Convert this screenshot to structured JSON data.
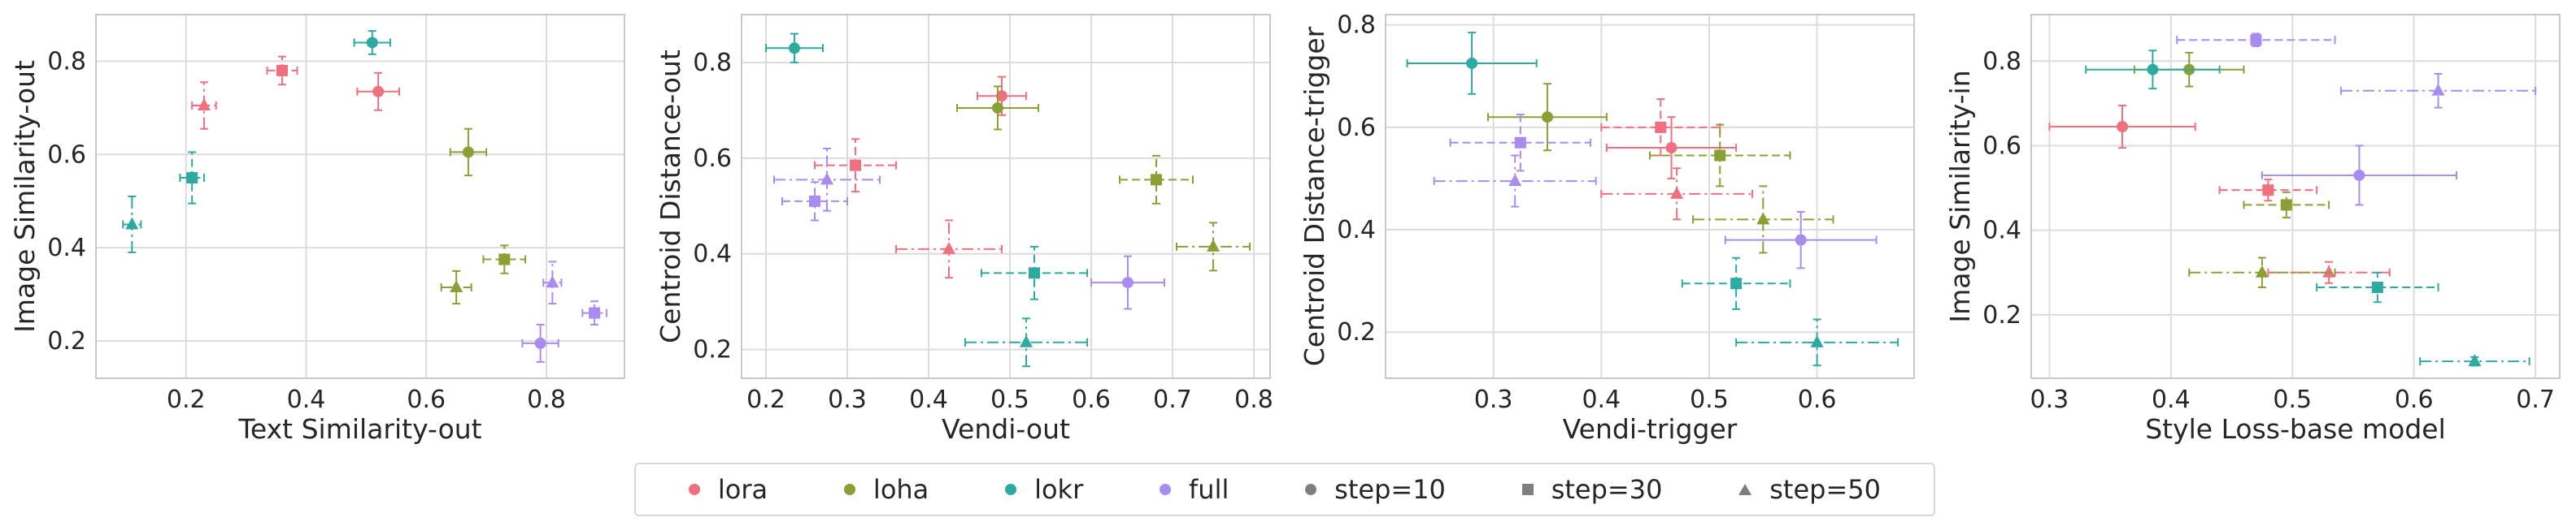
{
  "colors": {
    "lora": "#f07080",
    "loha": "#8aa034",
    "lokr": "#2faaa0",
    "full": "#a88cf0",
    "marker": "#7f7f7f",
    "grid": "#dcdcdc",
    "frame": "#c8c8c8",
    "text": "#262626"
  },
  "legend": [
    {
      "label": "lora",
      "shape": "circle",
      "color": "#f07080"
    },
    {
      "label": "loha",
      "shape": "circle",
      "color": "#8aa034"
    },
    {
      "label": "lokr",
      "shape": "circle",
      "color": "#2faaa0"
    },
    {
      "label": "full",
      "shape": "circle",
      "color": "#a88cf0"
    },
    {
      "label": "step=10",
      "shape": "circle",
      "color": "#7f7f7f"
    },
    {
      "label": "step=30",
      "shape": "square",
      "color": "#7f7f7f"
    },
    {
      "label": "step=50",
      "shape": "triangle",
      "color": "#7f7f7f"
    }
  ],
  "chart_data": [
    {
      "type": "scatter",
      "xlabel": "Text Similarity-out",
      "ylabel": "Image Similarity-out",
      "xlim": [
        0.05,
        0.93
      ],
      "ylim": [
        0.12,
        0.9
      ],
      "xticks": [
        "0.2",
        "0.4",
        "0.6",
        "0.8"
      ],
      "xtick_values": [
        0.2,
        0.4,
        0.6,
        0.8
      ],
      "yticks": [
        "0.2",
        "0.4",
        "0.6",
        "0.8"
      ],
      "ytick_values": [
        0.2,
        0.4,
        0.6,
        0.8
      ],
      "grid": true,
      "points": [
        {
          "method": "lora",
          "step": 10,
          "x": 0.52,
          "y": 0.735,
          "xerr": 0.035,
          "yerr": 0.04
        },
        {
          "method": "lora",
          "step": 30,
          "x": 0.36,
          "y": 0.78,
          "xerr": 0.025,
          "yerr": 0.03
        },
        {
          "method": "lora",
          "step": 50,
          "x": 0.23,
          "y": 0.705,
          "xerr": 0.02,
          "yerr": 0.05
        },
        {
          "method": "loha",
          "step": 10,
          "x": 0.67,
          "y": 0.605,
          "xerr": 0.03,
          "yerr": 0.05
        },
        {
          "method": "loha",
          "step": 30,
          "x": 0.73,
          "y": 0.375,
          "xerr": 0.035,
          "yerr": 0.03
        },
        {
          "method": "loha",
          "step": 50,
          "x": 0.65,
          "y": 0.315,
          "xerr": 0.025,
          "yerr": 0.035
        },
        {
          "method": "lokr",
          "step": 10,
          "x": 0.51,
          "y": 0.84,
          "xerr": 0.03,
          "yerr": 0.025
        },
        {
          "method": "lokr",
          "step": 30,
          "x": 0.21,
          "y": 0.55,
          "xerr": 0.02,
          "yerr": 0.055
        },
        {
          "method": "lokr",
          "step": 50,
          "x": 0.11,
          "y": 0.45,
          "xerr": 0.015,
          "yerr": 0.06
        },
        {
          "method": "full",
          "step": 10,
          "x": 0.79,
          "y": 0.195,
          "xerr": 0.03,
          "yerr": 0.04
        },
        {
          "method": "full",
          "step": 30,
          "x": 0.88,
          "y": 0.26,
          "xerr": 0.02,
          "yerr": 0.025
        },
        {
          "method": "full",
          "step": 50,
          "x": 0.81,
          "y": 0.325,
          "xerr": 0.015,
          "yerr": 0.045
        }
      ]
    },
    {
      "type": "scatter",
      "xlabel": "Vendi-out",
      "ylabel": "Centroid Distance-out",
      "xlim": [
        0.17,
        0.82
      ],
      "ylim": [
        0.14,
        0.9
      ],
      "xticks": [
        "0.2",
        "0.3",
        "0.4",
        "0.5",
        "0.6",
        "0.7",
        "0.8"
      ],
      "xtick_values": [
        0.2,
        0.3,
        0.4,
        0.5,
        0.6,
        0.7,
        0.8
      ],
      "yticks": [
        "0.2",
        "0.4",
        "0.6",
        "0.8"
      ],
      "ytick_values": [
        0.2,
        0.4,
        0.6,
        0.8
      ],
      "grid": true,
      "points": [
        {
          "method": "lora",
          "step": 10,
          "x": 0.49,
          "y": 0.73,
          "xerr": 0.03,
          "yerr": 0.04
        },
        {
          "method": "lora",
          "step": 30,
          "x": 0.31,
          "y": 0.585,
          "xerr": 0.05,
          "yerr": 0.055
        },
        {
          "method": "lora",
          "step": 50,
          "x": 0.425,
          "y": 0.41,
          "xerr": 0.065,
          "yerr": 0.06
        },
        {
          "method": "loha",
          "step": 10,
          "x": 0.485,
          "y": 0.705,
          "xerr": 0.05,
          "yerr": 0.045
        },
        {
          "method": "loha",
          "step": 30,
          "x": 0.68,
          "y": 0.555,
          "xerr": 0.045,
          "yerr": 0.05
        },
        {
          "method": "loha",
          "step": 50,
          "x": 0.75,
          "y": 0.415,
          "xerr": 0.045,
          "yerr": 0.05
        },
        {
          "method": "lokr",
          "step": 10,
          "x": 0.235,
          "y": 0.83,
          "xerr": 0.035,
          "yerr": 0.03
        },
        {
          "method": "lokr",
          "step": 30,
          "x": 0.53,
          "y": 0.36,
          "xerr": 0.065,
          "yerr": 0.055
        },
        {
          "method": "lokr",
          "step": 50,
          "x": 0.52,
          "y": 0.215,
          "xerr": 0.075,
          "yerr": 0.05
        },
        {
          "method": "full",
          "step": 10,
          "x": 0.645,
          "y": 0.34,
          "xerr": 0.045,
          "yerr": 0.055
        },
        {
          "method": "full",
          "step": 30,
          "x": 0.26,
          "y": 0.51,
          "xerr": 0.04,
          "yerr": 0.04
        },
        {
          "method": "full",
          "step": 50,
          "x": 0.275,
          "y": 0.555,
          "xerr": 0.065,
          "yerr": 0.065
        }
      ]
    },
    {
      "type": "scatter",
      "xlabel": "Vendi-trigger",
      "ylabel": "Centroid Distance-trigger",
      "xlim": [
        0.2,
        0.69
      ],
      "ylim": [
        0.11,
        0.82
      ],
      "xticks": [
        "0.3",
        "0.4",
        "0.5",
        "0.6"
      ],
      "xtick_values": [
        0.3,
        0.4,
        0.5,
        0.6
      ],
      "yticks": [
        "0.2",
        "0.4",
        "0.6",
        "0.8"
      ],
      "ytick_values": [
        0.2,
        0.4,
        0.6,
        0.8
      ],
      "grid": true,
      "points": [
        {
          "method": "lora",
          "step": 10,
          "x": 0.465,
          "y": 0.56,
          "xerr": 0.06,
          "yerr": 0.06
        },
        {
          "method": "lora",
          "step": 30,
          "x": 0.455,
          "y": 0.6,
          "xerr": 0.055,
          "yerr": 0.055
        },
        {
          "method": "lora",
          "step": 50,
          "x": 0.47,
          "y": 0.47,
          "xerr": 0.07,
          "yerr": 0.05
        },
        {
          "method": "loha",
          "step": 10,
          "x": 0.35,
          "y": 0.62,
          "xerr": 0.055,
          "yerr": 0.065
        },
        {
          "method": "loha",
          "step": 30,
          "x": 0.51,
          "y": 0.545,
          "xerr": 0.065,
          "yerr": 0.06
        },
        {
          "method": "loha",
          "step": 50,
          "x": 0.55,
          "y": 0.42,
          "xerr": 0.065,
          "yerr": 0.065
        },
        {
          "method": "lokr",
          "step": 10,
          "x": 0.28,
          "y": 0.725,
          "xerr": 0.06,
          "yerr": 0.06
        },
        {
          "method": "lokr",
          "step": 30,
          "x": 0.525,
          "y": 0.295,
          "xerr": 0.05,
          "yerr": 0.05
        },
        {
          "method": "lokr",
          "step": 50,
          "x": 0.6,
          "y": 0.18,
          "xerr": 0.075,
          "yerr": 0.045
        },
        {
          "method": "full",
          "step": 10,
          "x": 0.585,
          "y": 0.38,
          "xerr": 0.07,
          "yerr": 0.055
        },
        {
          "method": "full",
          "step": 30,
          "x": 0.325,
          "y": 0.57,
          "xerr": 0.065,
          "yerr": 0.055
        },
        {
          "method": "full",
          "step": 50,
          "x": 0.32,
          "y": 0.495,
          "xerr": 0.075,
          "yerr": 0.05
        }
      ]
    },
    {
      "type": "scatter",
      "xlabel": "Style Loss-base model",
      "ylabel": "Image Similarity-in",
      "xlim": [
        0.285,
        0.72
      ],
      "ylim": [
        0.05,
        0.91
      ],
      "xticks": [
        "0.3",
        "0.4",
        "0.5",
        "0.6",
        "0.7"
      ],
      "xtick_values": [
        0.3,
        0.4,
        0.5,
        0.6,
        0.7
      ],
      "yticks": [
        "0.2",
        "0.4",
        "0.6",
        "0.8"
      ],
      "ytick_values": [
        0.2,
        0.4,
        0.6,
        0.8
      ],
      "grid": true,
      "points": [
        {
          "method": "lora",
          "step": 10,
          "x": 0.36,
          "y": 0.645,
          "xerr": 0.06,
          "yerr": 0.05
        },
        {
          "method": "lora",
          "step": 30,
          "x": 0.48,
          "y": 0.495,
          "xerr": 0.04,
          "yerr": 0.025
        },
        {
          "method": "lora",
          "step": 50,
          "x": 0.53,
          "y": 0.3,
          "xerr": 0.05,
          "yerr": 0.025
        },
        {
          "method": "loha",
          "step": 10,
          "x": 0.415,
          "y": 0.78,
          "xerr": 0.045,
          "yerr": 0.04
        },
        {
          "method": "loha",
          "step": 30,
          "x": 0.495,
          "y": 0.46,
          "xerr": 0.035,
          "yerr": 0.03
        },
        {
          "method": "loha",
          "step": 50,
          "x": 0.475,
          "y": 0.3,
          "xerr": 0.06,
          "yerr": 0.035
        },
        {
          "method": "lokr",
          "step": 10,
          "x": 0.385,
          "y": 0.78,
          "xerr": 0.055,
          "yerr": 0.045
        },
        {
          "method": "lokr",
          "step": 30,
          "x": 0.57,
          "y": 0.265,
          "xerr": 0.05,
          "yerr": 0.035
        },
        {
          "method": "lokr",
          "step": 50,
          "x": 0.65,
          "y": 0.09,
          "xerr": 0.045,
          "yerr": 0.01
        },
        {
          "method": "full",
          "step": 10,
          "x": 0.555,
          "y": 0.53,
          "xerr": 0.08,
          "yerr": 0.07
        },
        {
          "method": "full",
          "step": 30,
          "x": 0.47,
          "y": 0.85,
          "xerr": 0.065,
          "yerr": 0.015
        },
        {
          "method": "full",
          "step": 50,
          "x": 0.62,
          "y": 0.73,
          "xerr": 0.08,
          "yerr": 0.04
        }
      ]
    }
  ]
}
